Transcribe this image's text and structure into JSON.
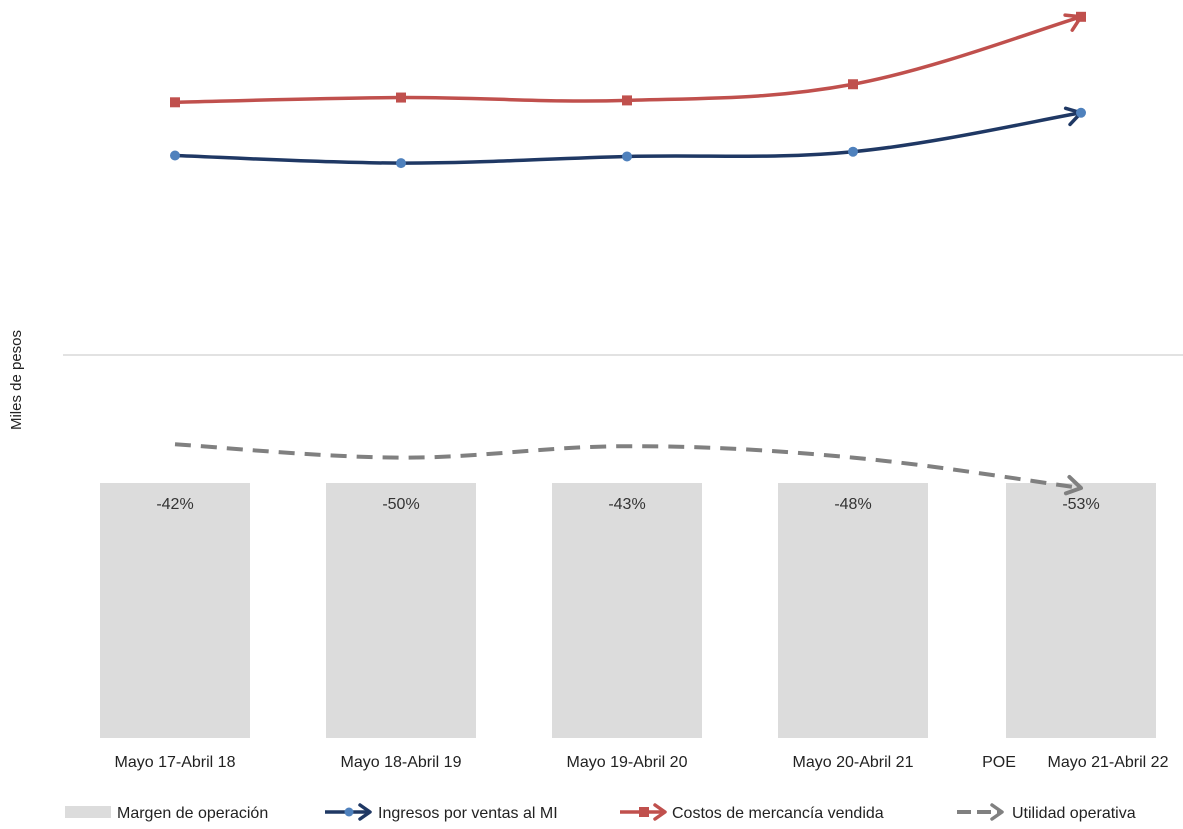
{
  "chart_data": {
    "type": "bar+line",
    "ylabel": "Miles de pesos",
    "categories": [
      "Mayo 17-Abril 18",
      "Mayo 18-Abril 19",
      "Mayo 19-Abril 20",
      "Mayo 20-Abril 21",
      "Mayo 21-Abril 22"
    ],
    "poe_label": "POE",
    "bars": {
      "name": "Margen de operación",
      "labels": [
        "-42%",
        "-50%",
        "-43%",
        "-48%",
        "-53%"
      ],
      "values": [
        -42,
        -50,
        -43,
        -48,
        -53
      ],
      "color": "#dcdcdc"
    },
    "series": [
      {
        "name": "Ingresos por ventas al MI",
        "values": [
          210,
          202,
          209,
          214,
          255
        ],
        "color": "#1f3864",
        "marker": "circle"
      },
      {
        "name": "Costos de mercancía vendida",
        "values": [
          266,
          271,
          268,
          285,
          356
        ],
        "color": "#c0504d",
        "marker": "square"
      },
      {
        "name": "Utilidad operativa",
        "values": [
          -94,
          -108,
          -96,
          -108,
          -140
        ],
        "color": "#808080",
        "marker": "none",
        "dashed": true
      }
    ],
    "grid": false,
    "legend_position": "bottom"
  }
}
